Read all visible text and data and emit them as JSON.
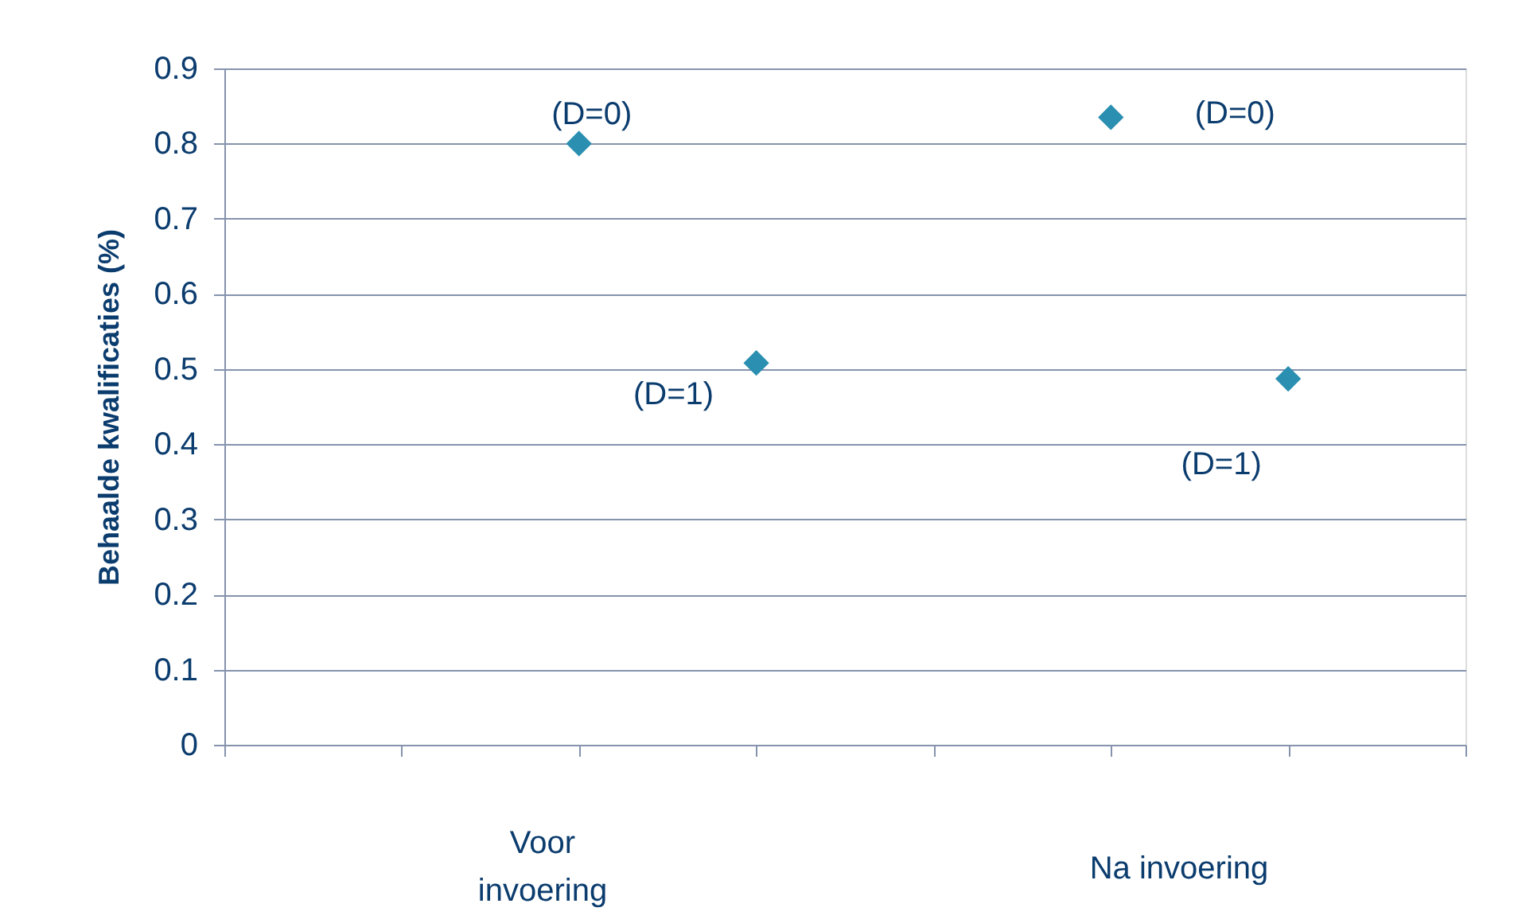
{
  "chart_data": {
    "type": "scatter",
    "ylabel": "Behaalde kwalificaties (%)",
    "categories": [
      null,
      null,
      null,
      null,
      null,
      null,
      null,
      null
    ],
    "series": [
      {
        "name": "(D=0)",
        "color": "#2a8fb0",
        "values": [
          null,
          null,
          0.8,
          null,
          null,
          0.835,
          null,
          null
        ]
      },
      {
        "name": "(D=1)",
        "color": "#2a8fb0",
        "values": [
          null,
          null,
          null,
          0.508,
          null,
          null,
          0.487,
          null
        ]
      }
    ],
    "ylim": [
      0,
      0.9
    ],
    "yticks": [
      0,
      0.1,
      0.2,
      0.3,
      0.4,
      0.5,
      0.6,
      0.7,
      0.8,
      0.9
    ],
    "tick_labels": "y",
    "grid": "y",
    "legend": false,
    "marker": "diamond",
    "annotations": [
      "Voor invoering",
      "Na invoering"
    ]
  }
}
